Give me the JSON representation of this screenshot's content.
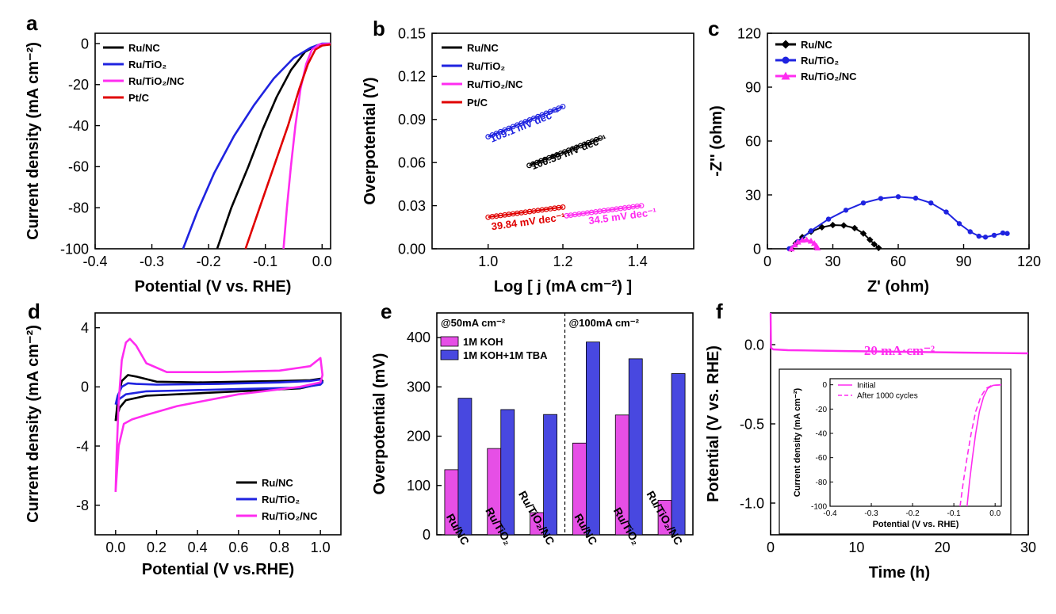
{
  "colors": {
    "black": "#000000",
    "blue": "#1f23e0",
    "magenta": "#ff2cf0",
    "red": "#e00000",
    "bar_magenta": "#e64fe6",
    "bar_blue": "#4848e0"
  },
  "panels": {
    "a": {
      "letter": "a"
    },
    "b": {
      "letter": "b"
    },
    "c": {
      "letter": "c"
    },
    "d": {
      "letter": "d"
    },
    "e": {
      "letter": "e"
    },
    "f": {
      "letter": "f"
    }
  },
  "chart_data": [
    {
      "id": "a",
      "type": "line",
      "xlabel": "Potential (V vs. RHE)",
      "ylabel": "Current density (mA cm⁻²)",
      "xlim": [
        -0.4,
        0.015
      ],
      "ylim": [
        -100,
        5
      ],
      "xticks": [
        -0.4,
        -0.3,
        -0.2,
        -0.1,
        0.0
      ],
      "xtick_labels": [
        "-0.4",
        "-0.3",
        "-0.2",
        "-0.1",
        "0.0"
      ],
      "yticks": [
        0,
        -20,
        -40,
        -60,
        -80,
        -100
      ],
      "ytick_labels": [
        "0",
        "-20",
        "-40",
        "-60",
        "-80",
        "-100"
      ],
      "legend_position": "top-left",
      "series": [
        {
          "name": "Ru/NC",
          "color": "#000000",
          "points": [
            [
              -0.185,
              -100
            ],
            [
              -0.16,
              -80
            ],
            [
              -0.13,
              -60
            ],
            [
              -0.105,
              -42
            ],
            [
              -0.08,
              -26
            ],
            [
              -0.055,
              -13
            ],
            [
              -0.03,
              -4
            ],
            [
              -0.01,
              -1
            ],
            [
              0.015,
              0
            ]
          ]
        },
        {
          "name": "Ru/TiO₂",
          "color": "#1f23e0",
          "points": [
            [
              -0.245,
              -100
            ],
            [
              -0.22,
              -82
            ],
            [
              -0.19,
              -63
            ],
            [
              -0.155,
              -45
            ],
            [
              -0.12,
              -30
            ],
            [
              -0.085,
              -17
            ],
            [
              -0.05,
              -7
            ],
            [
              -0.02,
              -2
            ],
            [
              0.0,
              0
            ],
            [
              0.015,
              0
            ]
          ]
        },
        {
          "name": "Ru/TiO₂/NC",
          "color": "#ff2cf0",
          "points": [
            [
              -0.068,
              -100
            ],
            [
              -0.062,
              -80
            ],
            [
              -0.055,
              -60
            ],
            [
              -0.047,
              -40
            ],
            [
              -0.038,
              -22
            ],
            [
              -0.028,
              -10
            ],
            [
              -0.018,
              -3
            ],
            [
              -0.005,
              -0.5
            ],
            [
              0.015,
              0
            ]
          ]
        },
        {
          "name": "Pt/C",
          "color": "#e00000",
          "points": [
            [
              -0.135,
              -100
            ],
            [
              -0.11,
              -80
            ],
            [
              -0.085,
              -60
            ],
            [
              -0.06,
              -40
            ],
            [
              -0.04,
              -22
            ],
            [
              -0.025,
              -10
            ],
            [
              -0.012,
              -3
            ],
            [
              0.0,
              -1
            ],
            [
              0.015,
              -0.5
            ]
          ]
        }
      ]
    },
    {
      "id": "b",
      "type": "scatter",
      "xlabel": "Log [ j (mA cm⁻²) ]",
      "ylabel": "Overpotential (V)",
      "xlim": [
        0.85,
        1.55
      ],
      "ylim": [
        0,
        0.15
      ],
      "xticks": [
        1.0,
        1.2,
        1.4
      ],
      "xtick_labels": [
        "1.0",
        "1.2",
        "1.4"
      ],
      "yticks": [
        0.0,
        0.03,
        0.06,
        0.09,
        0.12,
        0.15
      ],
      "ytick_labels": [
        "0.00",
        "0.03",
        "0.06",
        "0.09",
        "0.12",
        "0.15"
      ],
      "legend_position": "top-left",
      "series": [
        {
          "name": "Ru/NC",
          "color": "#000000",
          "x0": 1.11,
          "y0": 0.058,
          "x1": 1.3,
          "y1": 0.077,
          "annotation": "100.59 mV dec⁻¹",
          "ann_x": 1.12,
          "ann_y": 0.055
        },
        {
          "name": "Ru/TiO₂",
          "color": "#1f23e0",
          "x0": 1.0,
          "y0": 0.078,
          "x1": 1.2,
          "y1": 0.099,
          "annotation": "109.1 mV dec⁻¹",
          "ann_x": 1.01,
          "ann_y": 0.074
        },
        {
          "name": "Ru/TiO₂/NC",
          "color": "#ff2cf0",
          "x0": 1.21,
          "y0": 0.023,
          "x1": 1.41,
          "y1": 0.03,
          "annotation": "34.5 mV dec⁻¹",
          "ann_x": 1.27,
          "ann_y": 0.017
        },
        {
          "name": "Pt/C",
          "color": "#e00000",
          "x0": 1.0,
          "y0": 0.022,
          "x1": 1.2,
          "y1": 0.029,
          "annotation": "39.84 mV dec⁻¹",
          "ann_x": 1.01,
          "ann_y": 0.013
        }
      ]
    },
    {
      "id": "c",
      "type": "line",
      "xlabel": "Z' (ohm)",
      "ylabel": "-Z'' (ohm)",
      "xlim": [
        0,
        120
      ],
      "ylim": [
        0,
        120
      ],
      "xticks": [
        0,
        30,
        60,
        90,
        120
      ],
      "xtick_labels": [
        "0",
        "30",
        "60",
        "90",
        "120"
      ],
      "yticks": [
        0,
        30,
        60,
        90,
        120
      ],
      "ytick_labels": [
        "0",
        "30",
        "60",
        "90",
        "120"
      ],
      "legend_position": "top-left",
      "series": [
        {
          "name": "Ru/NC",
          "color": "#000000",
          "marker": "diamond",
          "points": [
            [
              11,
              0
            ],
            [
              13,
              3
            ],
            [
              16,
              6.5
            ],
            [
              20,
              9.5
            ],
            [
              25,
              12
            ],
            [
              30,
              13.2
            ],
            [
              35,
              13
            ],
            [
              40,
              11.5
            ],
            [
              44,
              8.5
            ],
            [
              47,
              5
            ],
            [
              49,
              2.5
            ],
            [
              51,
              0.5
            ]
          ]
        },
        {
          "name": "Ru/TiO₂",
          "color": "#1f23e0",
          "marker": "circle",
          "points": [
            [
              10,
              0
            ],
            [
              14,
              4
            ],
            [
              20,
              10
            ],
            [
              28,
              16.5
            ],
            [
              36,
              21.5
            ],
            [
              44,
              25.5
            ],
            [
              52,
              28
            ],
            [
              60,
              29
            ],
            [
              68,
              28.2
            ],
            [
              75,
              25.5
            ],
            [
              82,
              20.5
            ],
            [
              88,
              14
            ],
            [
              93,
              9.5
            ],
            [
              97,
              7
            ],
            [
              100,
              6.5
            ],
            [
              104,
              7.5
            ],
            [
              108,
              8.8
            ],
            [
              110,
              8.5
            ]
          ]
        },
        {
          "name": "Ru/TiO₂/NC",
          "color": "#ff2cf0",
          "marker": "triangle",
          "points": [
            [
              11,
              0
            ],
            [
              12.5,
              2.2
            ],
            [
              14,
              3.8
            ],
            [
              16,
              4.8
            ],
            [
              18,
              5
            ],
            [
              20,
              4.3
            ],
            [
              21.5,
              3
            ],
            [
              22.5,
              1.5
            ],
            [
              23,
              0.5
            ]
          ]
        }
      ]
    },
    {
      "id": "d",
      "type": "line",
      "xlabel": "Potential (V vs.RHE)",
      "ylabel": "Current density (mA cm⁻²)",
      "xlim": [
        -0.1,
        1.1
      ],
      "ylim": [
        -10,
        5
      ],
      "xticks": [
        0.0,
        0.2,
        0.4,
        0.6,
        0.8,
        1.0
      ],
      "xtick_labels": [
        "0.0",
        "0.2",
        "0.4",
        "0.6",
        "0.8",
        "1.0"
      ],
      "yticks": [
        4,
        0,
        -4,
        -8
      ],
      "ytick_labels": [
        "4",
        "0",
        "-4",
        "-8"
      ],
      "legend_position": "bottom-right",
      "series": [
        {
          "name": "Ru/NC",
          "color": "#000000",
          "points": [
            [
              0,
              -2.3
            ],
            [
              0.01,
              -1
            ],
            [
              0.03,
              0.4
            ],
            [
              0.06,
              0.8
            ],
            [
              0.1,
              0.7
            ],
            [
              0.2,
              0.35
            ],
            [
              0.4,
              0.3
            ],
            [
              0.6,
              0.35
            ],
            [
              0.8,
              0.4
            ],
            [
              0.95,
              0.45
            ],
            [
              1.0,
              0.55
            ],
            [
              1.01,
              0.4
            ],
            [
              1.0,
              0.2
            ],
            [
              0.9,
              -0.1
            ],
            [
              0.6,
              -0.3
            ],
            [
              0.3,
              -0.5
            ],
            [
              0.15,
              -0.6
            ],
            [
              0.05,
              -0.9
            ],
            [
              0.02,
              -1.4
            ],
            [
              0,
              -2.3
            ]
          ]
        },
        {
          "name": "Ru/TiO₂",
          "color": "#1f23e0",
          "points": [
            [
              0,
              -1.2
            ],
            [
              0.01,
              -0.6
            ],
            [
              0.03,
              0
            ],
            [
              0.06,
              0.25
            ],
            [
              0.1,
              0.2
            ],
            [
              0.2,
              0.15
            ],
            [
              0.5,
              0.2
            ],
            [
              0.8,
              0.3
            ],
            [
              0.95,
              0.4
            ],
            [
              1.0,
              0.5
            ],
            [
              1.01,
              0.3
            ],
            [
              1.0,
              0.15
            ],
            [
              0.9,
              -0.05
            ],
            [
              0.6,
              -0.15
            ],
            [
              0.3,
              -0.25
            ],
            [
              0.15,
              -0.3
            ],
            [
              0.05,
              -0.5
            ],
            [
              0.02,
              -0.8
            ],
            [
              0,
              -1.2
            ]
          ]
        },
        {
          "name": "Ru/TiO₂/NC",
          "color": "#ff2cf0",
          "points": [
            [
              0,
              -7.1
            ],
            [
              0.005,
              -4.5
            ],
            [
              0.015,
              -1
            ],
            [
              0.03,
              1.8
            ],
            [
              0.05,
              3
            ],
            [
              0.07,
              3.25
            ],
            [
              0.1,
              2.8
            ],
            [
              0.15,
              1.6
            ],
            [
              0.25,
              1.0
            ],
            [
              0.5,
              1.0
            ],
            [
              0.8,
              1.1
            ],
            [
              0.95,
              1.4
            ],
            [
              1.0,
              1.95
            ],
            [
              1.01,
              0.8
            ],
            [
              1.0,
              0.3
            ],
            [
              0.9,
              0
            ],
            [
              0.6,
              -0.5
            ],
            [
              0.3,
              -1.3
            ],
            [
              0.15,
              -1.9
            ],
            [
              0.08,
              -2.2
            ],
            [
              0.04,
              -2.5
            ],
            [
              0.015,
              -4
            ],
            [
              0,
              -7.1
            ]
          ]
        }
      ]
    },
    {
      "id": "e",
      "type": "bar",
      "ylabel": "Overpotential (mV)",
      "ylim": [
        0,
        450
      ],
      "yticks": [
        0,
        100,
        200,
        300,
        400
      ],
      "ytick_labels": [
        "0",
        "100",
        "200",
        "300",
        "400"
      ],
      "categories": [
        "Ru/NC",
        "Ru/TiO₂",
        "Ru/TiO₂/NC",
        "Ru/NC",
        "Ru/TiO₂",
        "Ru/TiO₂/NC"
      ],
      "group_labels": [
        "@50mA cm⁻²",
        "@100mA cm⁻²"
      ],
      "legend_position": "top-left",
      "series": [
        {
          "name": "1M KOH",
          "color": "#e64fe6",
          "values": [
            132,
            175,
            45,
            186,
            243,
            70
          ]
        },
        {
          "name": "1M KOH+1M TBA",
          "color": "#4848e0",
          "values": [
            277,
            254,
            244,
            391,
            357,
            327
          ]
        }
      ]
    },
    {
      "id": "f",
      "type": "line",
      "xlabel": "Time (h)",
      "ylabel": "Potential (V vs. RHE)",
      "xlim": [
        0,
        30
      ],
      "ylim": [
        -1.2,
        0.2
      ],
      "xticks": [
        0,
        10,
        20,
        30
      ],
      "xtick_labels": [
        "0",
        "10",
        "20",
        "30"
      ],
      "yticks": [
        0.0,
        -0.5,
        -1.0
      ],
      "ytick_labels": [
        "0.0",
        "-0.5",
        "-1.0"
      ],
      "annotation": "20 mA·cm⁻²",
      "series": [
        {
          "name": "",
          "color": "#ff2cf0",
          "points": [
            [
              0,
              0.2
            ],
            [
              0.05,
              -0.02
            ],
            [
              0.3,
              -0.03
            ],
            [
              2,
              -0.035
            ],
            [
              8,
              -0.04
            ],
            [
              15,
              -0.045
            ],
            [
              22,
              -0.05
            ],
            [
              30,
              -0.055
            ]
          ]
        }
      ],
      "inset": {
        "xlabel": "Potential (V vs. RHE)",
        "ylabel": "Current density (mA cm⁻²)",
        "xlim": [
          -0.4,
          0.015
        ],
        "ylim": [
          -100,
          5
        ],
        "xticks": [
          -0.4,
          -0.3,
          -0.2,
          -0.1,
          0.0
        ],
        "xtick_labels": [
          "-0.4",
          "-0.3",
          "-0.2",
          "-0.1",
          "0.0"
        ],
        "yticks": [
          0,
          -20,
          -40,
          -60,
          -80,
          -100
        ],
        "ytick_labels": [
          "0",
          "-20",
          "-40",
          "-60",
          "-80",
          "-100"
        ],
        "series": [
          {
            "name": "Initial",
            "color": "#ff2cf0",
            "dash": false,
            "points": [
              [
                -0.068,
                -100
              ],
              [
                -0.062,
                -80
              ],
              [
                -0.055,
                -60
              ],
              [
                -0.047,
                -40
              ],
              [
                -0.038,
                -22
              ],
              [
                -0.028,
                -10
              ],
              [
                -0.018,
                -3
              ],
              [
                -0.005,
                -0.5
              ],
              [
                0.015,
                0
              ]
            ]
          },
          {
            "name": "After 1000 cycles",
            "color": "#ff2cf0",
            "dash": true,
            "points": [
              [
                -0.085,
                -100
              ],
              [
                -0.077,
                -80
              ],
              [
                -0.068,
                -60
              ],
              [
                -0.058,
                -40
              ],
              [
                -0.047,
                -22
              ],
              [
                -0.035,
                -10
              ],
              [
                -0.022,
                -3
              ],
              [
                -0.008,
                -0.5
              ],
              [
                0.015,
                0
              ]
            ]
          }
        ]
      }
    }
  ]
}
